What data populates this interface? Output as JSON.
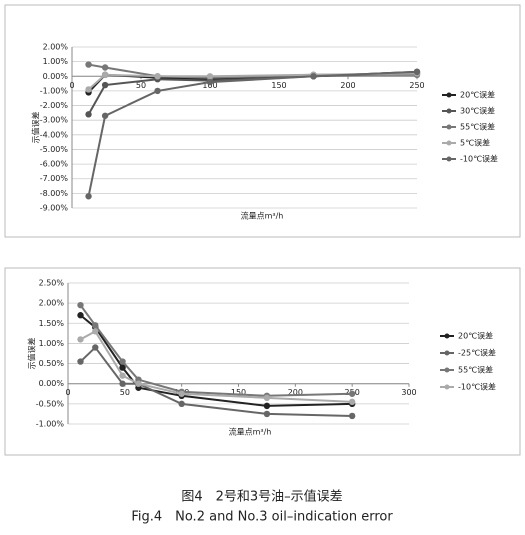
{
  "chart_data": [
    {
      "type": "line",
      "xlabel": "流量点m³/h",
      "ylabel": "示值误差",
      "x": [
        12,
        24,
        62,
        100,
        175,
        250
      ],
      "xlim": [
        0,
        250
      ],
      "xticks": [
        0,
        50,
        100,
        150,
        200,
        250
      ],
      "ylim": [
        -9,
        2
      ],
      "yticks": [
        {
          "value": 2,
          "label": "2.00%"
        },
        {
          "value": 1,
          "label": "1.00%"
        },
        {
          "value": 0,
          "label": "0.00%"
        },
        {
          "value": -1,
          "label": "-1.00%"
        },
        {
          "value": -2,
          "label": "-2.00%"
        },
        {
          "value": -3,
          "label": "-3.00%"
        },
        {
          "value": -4,
          "label": "-4.00%"
        },
        {
          "value": -5,
          "label": "-5.00%"
        },
        {
          "value": -6,
          "label": "-6.00%"
        },
        {
          "value": -7,
          "label": "-7.00%"
        },
        {
          "value": -8,
          "label": "-8.00%"
        },
        {
          "value": -9,
          "label": "-9.00%"
        }
      ],
      "grid": true,
      "legend": "right",
      "series": [
        {
          "name": "20℃误差",
          "color": "#222222",
          "values": [
            -1.1,
            0.1,
            -0.1,
            -0.2,
            0.0,
            0.3
          ]
        },
        {
          "name": "30℃误差",
          "color": "#555555",
          "values": [
            -2.6,
            -0.6,
            -0.2,
            -0.3,
            0.0,
            0.2
          ]
        },
        {
          "name": "55℃误差",
          "color": "#777777",
          "values": [
            0.8,
            0.6,
            0.0,
            -0.1,
            0.1,
            0.1
          ]
        },
        {
          "name": "5℃误差",
          "color": "#aaaaaa",
          "values": [
            -0.9,
            0.1,
            0.0,
            0.0,
            0.1,
            0.2
          ]
        },
        {
          "name": "-10℃误差",
          "color": "#666666",
          "values": [
            -8.2,
            -2.7,
            -1.0,
            -0.4,
            0.0,
            0.3
          ]
        }
      ]
    },
    {
      "type": "line",
      "xlabel": "流量点m³/h",
      "ylabel": "示值误差",
      "x": [
        11,
        24,
        48,
        62,
        100,
        175,
        250
      ],
      "xlim": [
        0,
        300
      ],
      "xticks": [
        0,
        50,
        100,
        150,
        200,
        250,
        300
      ],
      "ylim": [
        -1,
        2.5
      ],
      "yticks": [
        {
          "value": 2.5,
          "label": "2.50%"
        },
        {
          "value": 2,
          "label": "2.00%"
        },
        {
          "value": 1.5,
          "label": "1.50%"
        },
        {
          "value": 1,
          "label": "1.00%"
        },
        {
          "value": 0.5,
          "label": "0.50%"
        },
        {
          "value": 0,
          "label": "0.00%"
        },
        {
          "value": -0.5,
          "label": "-0.50%"
        },
        {
          "value": -1,
          "label": "-1.00%"
        }
      ],
      "grid": true,
      "legend": "right",
      "series": [
        {
          "name": "20℃误差",
          "color": "#222222",
          "values": [
            1.7,
            1.4,
            0.4,
            -0.1,
            -0.3,
            -0.55,
            -0.5
          ]
        },
        {
          "name": "-25℃误差",
          "color": "#666666",
          "values": [
            0.55,
            0.9,
            0.0,
            0.0,
            -0.5,
            -0.75,
            -0.8
          ]
        },
        {
          "name": "55℃误差",
          "color": "#777777",
          "values": [
            1.95,
            1.45,
            0.55,
            0.1,
            -0.2,
            -0.3,
            -0.25
          ]
        },
        {
          "name": "-10℃误差",
          "color": "#aaaaaa",
          "values": [
            1.1,
            1.3,
            0.2,
            0.0,
            -0.25,
            -0.35,
            -0.45
          ]
        }
      ]
    }
  ],
  "caption": {
    "zh": "图4　2号和3号油–示值误差",
    "en": "Fig.4　No.2 and No.3 oil–indication error"
  }
}
